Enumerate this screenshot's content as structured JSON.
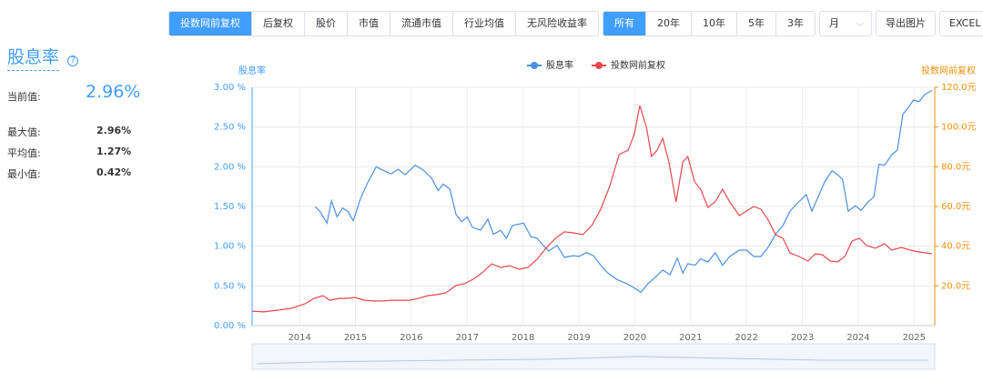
{
  "toolbar": {
    "groups": [
      [
        "投数网前复权",
        "后复权",
        "股价",
        "市值",
        "流通市值",
        "行业均值",
        "无风险收益率"
      ],
      [
        "所有",
        "20年",
        "10年",
        "5年",
        "3年"
      ]
    ],
    "select": "月",
    "buttons": [
      "导出图片",
      "EXCEL"
    ]
  },
  "stats": {
    "title": "股息率",
    "current_label": "当前值:",
    "current_value": "2.96%",
    "rows": [
      {
        "label": "最大值:",
        "value": "2.96%"
      },
      {
        "label": "平均值:",
        "value": "1.27%"
      },
      {
        "label": "最小值:",
        "value": "0.42%"
      }
    ]
  },
  "chart_data": {
    "type": "line",
    "y_label": "股息率",
    "y2_label": "投数网前复权",
    "xlim": [
      2013.15,
      2025.37
    ],
    "xticks": [
      2014,
      2015,
      2016,
      2017,
      2018,
      2019,
      2020,
      2021,
      2022,
      2023,
      2024,
      2025
    ],
    "ylim": [
      0,
      3
    ],
    "yticks": [
      {
        "value": 0,
        "label": "0.00 %"
      },
      {
        "value": 0.5,
        "label": "0.50 %"
      },
      {
        "value": 1,
        "label": "1.00 %"
      },
      {
        "value": 1.5,
        "label": "1.50 %"
      },
      {
        "value": 2,
        "label": "2.00 %"
      },
      {
        "value": 2.5,
        "label": "2.50 %"
      },
      {
        "value": 3,
        "label": "3.00 %"
      }
    ],
    "y2lim": [
      0,
      120
    ],
    "y2ticks": [
      {
        "value": 20,
        "label": "20.0元"
      },
      {
        "value": 40,
        "label": "40.0元"
      },
      {
        "value": 60,
        "label": "60.0元"
      },
      {
        "value": 80,
        "label": "80.0元"
      },
      {
        "value": 100,
        "label": "100.0元"
      },
      {
        "value": 120,
        "label": "120.0元"
      }
    ],
    "grid": true,
    "series": [
      {
        "name": "股息率",
        "color": "#4a90e2",
        "x": [
          2014.28,
          2014.37,
          2014.49,
          2014.57,
          2014.67,
          2014.77,
          2014.86,
          2014.96,
          2015.09,
          2015.22,
          2015.37,
          2015.48,
          2015.64,
          2015.76,
          2015.89,
          2016.07,
          2016.21,
          2016.36,
          2016.48,
          2016.57,
          2016.69,
          2016.8,
          2016.9,
          2017.0,
          2017.09,
          2017.24,
          2017.37,
          2017.47,
          2017.6,
          2017.7,
          2017.81,
          2018.01,
          2018.14,
          2018.25,
          2018.36,
          2018.46,
          2018.61,
          2018.74,
          2018.9,
          2019.0,
          2019.13,
          2019.26,
          2019.39,
          2019.52,
          2019.68,
          2019.85,
          2019.98,
          2020.11,
          2020.24,
          2020.37,
          2020.5,
          2020.63,
          2020.76,
          2020.86,
          2020.95,
          2021.08,
          2021.18,
          2021.31,
          2021.44,
          2021.57,
          2021.7,
          2021.87,
          2022.0,
          2022.13,
          2022.26,
          2022.39,
          2022.52,
          2022.65,
          2022.78,
          2022.88,
          2022.97,
          2023.07,
          2023.17,
          2023.27,
          2023.4,
          2023.53,
          2023.63,
          2023.72,
          2023.82,
          2023.95,
          2024.05,
          2024.18,
          2024.28,
          2024.37,
          2024.47,
          2024.6,
          2024.7,
          2024.8,
          2024.9,
          2024.99,
          2025.09,
          2025.19,
          2025.32
        ],
        "values": [
          1.5,
          1.43,
          1.29,
          1.57,
          1.37,
          1.48,
          1.44,
          1.32,
          1.6,
          1.8,
          2.0,
          1.96,
          1.91,
          1.97,
          1.9,
          2.02,
          1.96,
          1.86,
          1.7,
          1.78,
          1.72,
          1.4,
          1.31,
          1.37,
          1.24,
          1.2,
          1.34,
          1.15,
          1.2,
          1.1,
          1.26,
          1.29,
          1.12,
          1.1,
          1.01,
          0.94,
          1.01,
          0.86,
          0.88,
          0.87,
          0.92,
          0.88,
          0.76,
          0.66,
          0.58,
          0.53,
          0.48,
          0.42,
          0.53,
          0.61,
          0.7,
          0.64,
          0.85,
          0.66,
          0.78,
          0.76,
          0.84,
          0.8,
          0.92,
          0.76,
          0.87,
          0.95,
          0.95,
          0.87,
          0.87,
          0.99,
          1.15,
          1.26,
          1.44,
          1.52,
          1.58,
          1.65,
          1.44,
          1.6,
          1.81,
          1.95,
          1.9,
          1.84,
          1.44,
          1.51,
          1.45,
          1.56,
          1.62,
          2.03,
          2.02,
          2.15,
          2.21,
          2.66,
          2.75,
          2.84,
          2.82,
          2.91,
          2.96
        ]
      },
      {
        "name": "投数网前复权",
        "color": "#e8474b",
        "axis": "y2",
        "x": [
          2013.15,
          2013.36,
          2013.61,
          2013.85,
          2014.1,
          2014.26,
          2014.42,
          2014.54,
          2014.7,
          2014.83,
          2014.99,
          2015.16,
          2015.32,
          2015.48,
          2015.64,
          2015.81,
          2015.97,
          2016.13,
          2016.3,
          2016.46,
          2016.62,
          2016.79,
          2016.95,
          2017.11,
          2017.27,
          2017.44,
          2017.6,
          2017.76,
          2017.93,
          2018.09,
          2018.25,
          2018.41,
          2018.58,
          2018.74,
          2018.9,
          2019.07,
          2019.23,
          2019.39,
          2019.55,
          2019.72,
          2019.88,
          2019.99,
          2020.09,
          2020.21,
          2020.3,
          2020.4,
          2020.5,
          2020.61,
          2020.74,
          2020.86,
          2020.95,
          2021.07,
          2021.18,
          2021.31,
          2021.44,
          2021.57,
          2021.7,
          2021.87,
          2022.0,
          2022.13,
          2022.26,
          2022.39,
          2022.52,
          2022.65,
          2022.78,
          2022.94,
          2023.1,
          2023.23,
          2023.36,
          2023.5,
          2023.63,
          2023.76,
          2023.89,
          2024.02,
          2024.15,
          2024.31,
          2024.47,
          2024.6,
          2024.77,
          2024.93,
          2025.09,
          2025.32
        ],
        "values": [
          7.3,
          6.9,
          7.8,
          8.7,
          11.0,
          13.7,
          15.1,
          12.8,
          13.7,
          13.7,
          14.2,
          12.8,
          12.4,
          12.4,
          12.8,
          12.8,
          12.8,
          13.7,
          15.1,
          15.6,
          16.5,
          20.1,
          21.1,
          23.4,
          26.6,
          31.1,
          29.3,
          30.2,
          28.4,
          29.3,
          33.4,
          39.0,
          44.0,
          47.2,
          46.7,
          45.8,
          50.4,
          58.6,
          70.1,
          86.1,
          88.4,
          96.2,
          110.8,
          99.8,
          85.2,
          88.4,
          94.3,
          82.4,
          62.3,
          82.4,
          85.2,
          72.4,
          68.7,
          59.5,
          62.3,
          68.7,
          62.3,
          55.4,
          57.7,
          60.0,
          58.6,
          53.1,
          45.8,
          44.0,
          36.6,
          34.8,
          32.5,
          36.2,
          35.7,
          32.5,
          32.1,
          34.8,
          42.6,
          44.0,
          40.3,
          39.0,
          41.2,
          38.0,
          39.4,
          38.0,
          37.1,
          36.2
        ]
      }
    ]
  }
}
